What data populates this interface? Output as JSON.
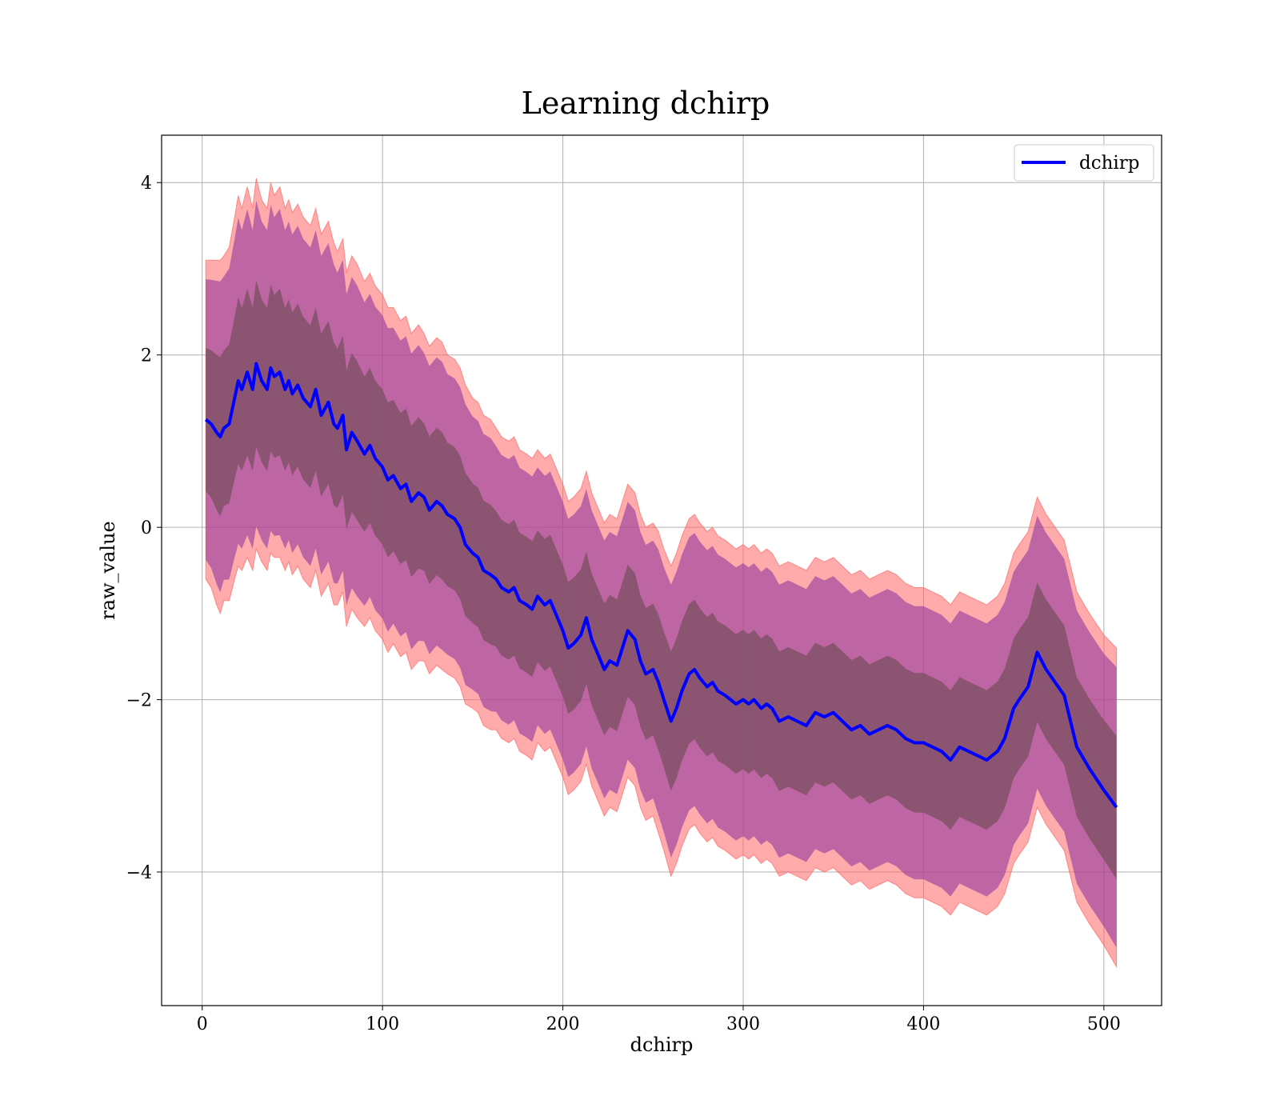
{
  "chart_data": {
    "type": "line",
    "title": "Learning dchirp",
    "xlabel": "dchirp",
    "ylabel": "raw_value",
    "xlim": [
      -22.5,
      532
    ],
    "ylim": [
      -5.55,
      4.55
    ],
    "xticks": [
      0,
      100,
      200,
      300,
      400,
      500
    ],
    "yticks": [
      -4,
      -2,
      0,
      2,
      4
    ],
    "xtick_labels": [
      "0",
      "100",
      "200",
      "300",
      "400",
      "500"
    ],
    "ytick_labels": [
      "−4",
      "−2",
      "0",
      "2",
      "4"
    ],
    "grid": true,
    "legend_position": "top-right",
    "colors": {
      "line": "#0000ff",
      "band_outer": "#ff6666",
      "band_mid": "#9b3fa0",
      "band_inner": "#7a5060"
    },
    "series": [
      {
        "name": "dchirp",
        "x": [
          2,
          5,
          8,
          10,
          12,
          15,
          18,
          20,
          22,
          25,
          28,
          30,
          33,
          36,
          38,
          40,
          43,
          46,
          48,
          50,
          53,
          56,
          60,
          63,
          66,
          70,
          73,
          75,
          78,
          80,
          83,
          86,
          90,
          93,
          96,
          100,
          103,
          106,
          110,
          113,
          116,
          120,
          123,
          126,
          130,
          133,
          136,
          140,
          143,
          146,
          150,
          153,
          156,
          160,
          163,
          166,
          170,
          173,
          176,
          180,
          183,
          186,
          190,
          193,
          196,
          200,
          203,
          206,
          210,
          213,
          216,
          220,
          223,
          226,
          230,
          233,
          236,
          240,
          243,
          246,
          250,
          253,
          256,
          260,
          263,
          266,
          270,
          273,
          276,
          280,
          283,
          286,
          290,
          293,
          296,
          300,
          303,
          306,
          310,
          313,
          316,
          320,
          325,
          330,
          335,
          340,
          345,
          350,
          355,
          360,
          365,
          370,
          375,
          380,
          385,
          390,
          395,
          400,
          405,
          410,
          415,
          420,
          425,
          430,
          435,
          438,
          441,
          445,
          450,
          453,
          458,
          463,
          468,
          473,
          478,
          485,
          492,
          500,
          507
        ],
        "values": [
          1.25,
          1.2,
          1.1,
          1.05,
          1.15,
          1.2,
          1.5,
          1.7,
          1.6,
          1.8,
          1.6,
          1.9,
          1.7,
          1.6,
          1.85,
          1.75,
          1.8,
          1.6,
          1.7,
          1.55,
          1.65,
          1.5,
          1.4,
          1.6,
          1.3,
          1.45,
          1.2,
          1.15,
          1.3,
          0.9,
          1.1,
          1.0,
          0.85,
          0.95,
          0.8,
          0.7,
          0.55,
          0.6,
          0.45,
          0.5,
          0.3,
          0.4,
          0.35,
          0.2,
          0.3,
          0.25,
          0.15,
          0.1,
          0.0,
          -0.2,
          -0.3,
          -0.35,
          -0.5,
          -0.55,
          -0.6,
          -0.7,
          -0.75,
          -0.7,
          -0.85,
          -0.9,
          -0.95,
          -0.8,
          -0.9,
          -0.85,
          -1.0,
          -1.2,
          -1.4,
          -1.35,
          -1.25,
          -1.05,
          -1.3,
          -1.5,
          -1.65,
          -1.55,
          -1.6,
          -1.4,
          -1.2,
          -1.3,
          -1.55,
          -1.7,
          -1.65,
          -1.8,
          -2.0,
          -2.25,
          -2.1,
          -1.9,
          -1.7,
          -1.65,
          -1.75,
          -1.85,
          -1.8,
          -1.9,
          -1.95,
          -2.0,
          -2.05,
          -2.0,
          -2.05,
          -2.0,
          -2.1,
          -2.05,
          -2.1,
          -2.25,
          -2.2,
          -2.25,
          -2.3,
          -2.15,
          -2.2,
          -2.15,
          -2.25,
          -2.35,
          -2.3,
          -2.4,
          -2.35,
          -2.3,
          -2.35,
          -2.45,
          -2.5,
          -2.5,
          -2.55,
          -2.6,
          -2.7,
          -2.55,
          -2.6,
          -2.65,
          -2.7,
          -2.65,
          -2.6,
          -2.45,
          -2.1,
          -2.0,
          -1.85,
          -1.45,
          -1.65,
          -1.8,
          -1.95,
          -2.55,
          -2.8,
          -3.05,
          -3.25
        ],
        "band_outer_halfwidth": [
          1.85,
          1.9,
          2.0,
          2.05,
          2.0,
          2.05,
          2.1,
          2.15,
          2.1,
          2.15,
          2.1,
          2.15,
          2.1,
          2.1,
          2.15,
          2.1,
          2.15,
          2.1,
          2.1,
          2.1,
          2.1,
          2.1,
          2.1,
          2.1,
          2.1,
          2.1,
          2.1,
          2.05,
          2.05,
          2.05,
          2.05,
          2.05,
          2.0,
          2.0,
          2.0,
          2.0,
          2.0,
          1.95,
          1.95,
          1.95,
          1.95,
          1.95,
          1.9,
          1.9,
          1.9,
          1.9,
          1.85,
          1.85,
          1.85,
          1.85,
          1.8,
          1.8,
          1.8,
          1.8,
          1.75,
          1.75,
          1.75,
          1.75,
          1.75,
          1.75,
          1.75,
          1.7,
          1.7,
          1.7,
          1.7,
          1.7,
          1.7,
          1.7,
          1.7,
          1.7,
          1.7,
          1.7,
          1.7,
          1.7,
          1.7,
          1.7,
          1.7,
          1.7,
          1.7,
          1.7,
          1.7,
          1.75,
          1.75,
          1.8,
          1.8,
          1.8,
          1.8,
          1.8,
          1.8,
          1.8,
          1.8,
          1.8,
          1.8,
          1.8,
          1.8,
          1.8,
          1.8,
          1.8,
          1.8,
          1.8,
          1.8,
          1.8,
          1.8,
          1.8,
          1.8,
          1.8,
          1.8,
          1.8,
          1.8,
          1.8,
          1.8,
          1.8,
          1.8,
          1.8,
          1.8,
          1.8,
          1.8,
          1.8,
          1.8,
          1.8,
          1.8,
          1.8,
          1.8,
          1.8,
          1.8,
          1.8,
          1.8,
          1.8,
          1.8,
          1.8,
          1.8,
          1.8,
          1.8,
          1.8,
          1.8,
          1.8,
          1.8,
          1.8,
          1.85
        ]
      }
    ]
  },
  "legend": {
    "label": "dchirp"
  }
}
